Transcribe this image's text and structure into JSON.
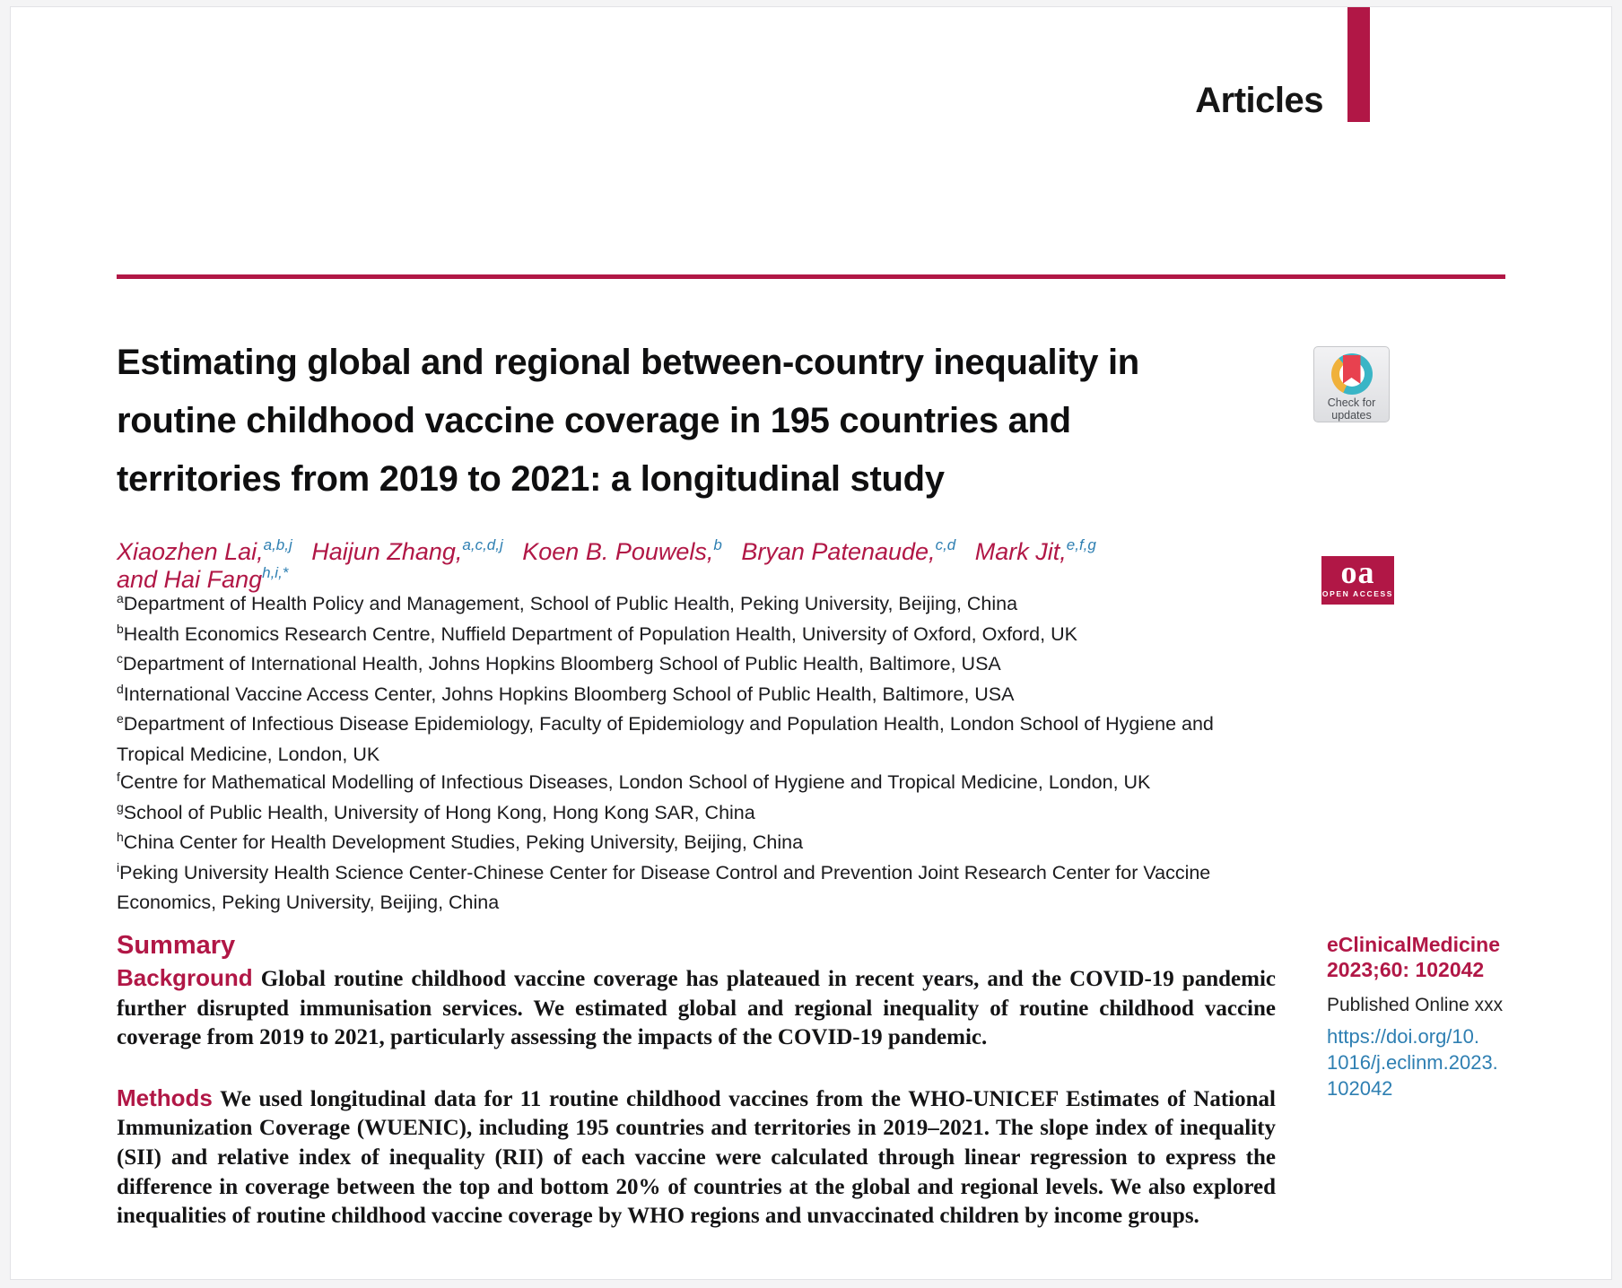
{
  "header": {
    "label": "Articles"
  },
  "title": "Estimating global and regional between-country inequality in\nroutine childhood vaccine coverage in 195 countries and\nterritories from 2019 to 2021: a longitudinal study",
  "authors": [
    {
      "name": "Xiaozhen Lai,",
      "sup": "a,b,j"
    },
    {
      "name": "Haijun Zhang,",
      "sup": "a,c,d,j"
    },
    {
      "name": "Koen B. Pouwels,",
      "sup": "b"
    },
    {
      "name": "Bryan Patenaude,",
      "sup": "c,d"
    },
    {
      "name": "Mark Jit,",
      "sup": "e,f,g"
    },
    {
      "name": "and Hai Fang",
      "sup": "h,i,*"
    }
  ],
  "affiliations": [
    {
      "sup": "a",
      "text": "Department of Health Policy and Management, School of Public Health, Peking University, Beijing, China"
    },
    {
      "sup": "b",
      "text": "Health Economics Research Centre, Nuffield Department of Population Health, University of Oxford, Oxford, UK"
    },
    {
      "sup": "c",
      "text": "Department of International Health, Johns Hopkins Bloomberg School of Public Health, Baltimore, USA"
    },
    {
      "sup": "d",
      "text": "International Vaccine Access Center, Johns Hopkins Bloomberg School of Public Health, Baltimore, USA"
    },
    {
      "sup": "e",
      "text": "Department of Infectious Disease Epidemiology, Faculty of Epidemiology and Population Health, London School of Hygiene and Tropical Medicine, London, UK"
    },
    {
      "sup": "f",
      "text": "Centre for Mathematical Modelling of Infectious Diseases, London School of Hygiene and Tropical Medicine, London, UK"
    },
    {
      "sup": "g",
      "text": "School of Public Health, University of Hong Kong, Hong Kong SAR, China"
    },
    {
      "sup": "h",
      "text": "China Center for Health Development Studies, Peking University, Beijing, China"
    },
    {
      "sup": "i",
      "text": "Peking University Health Science Center-Chinese Center for Disease Control and Prevention Joint Research Center for Vaccine Economics, Peking University, Beijing, China"
    }
  ],
  "summary": {
    "heading": "Summary",
    "paragraphs": [
      {
        "label": "Background",
        "text": "Global routine childhood vaccine coverage has plateaued in recent years, and the COVID-19 pandemic further disrupted immunisation services. We estimated global and regional inequality of routine childhood vaccine coverage from 2019 to 2021, particularly assessing the impacts of the COVID-19 pandemic."
      },
      {
        "label": "Methods",
        "text": "We used longitudinal data for 11 routine childhood vaccines from the WHO-UNICEF Estimates of National Immunization Coverage (WUENIC), including 195 countries and territories in 2019–2021. The slope index of inequality (SII) and relative index of inequality (RII) of each vaccine were calculated through linear regression to express the difference in coverage between the top and bottom 20% of countries at the global and regional levels. We also explored inequalities of routine childhood vaccine coverage by WHO regions and unvaccinated children by income groups."
      }
    ]
  },
  "sidebar": {
    "check_updates": {
      "line1": "Check for",
      "line2": "updates"
    },
    "open_access": {
      "abbr": "oa",
      "label": "OPEN ACCESS"
    },
    "journal": "eClinicalMedicine",
    "citation": "2023;60: 102042",
    "published": "Published Online xxx",
    "doi": "https://doi.org/10.\n1016/j.eclinm.2023.\n102042"
  },
  "colors": {
    "crimson": "#b11746",
    "sup-blue": "#2e7fb2",
    "link-blue": "#2e7fb2",
    "badge-teal": "#3ab5c6",
    "badge-yellow": "#f0b13b",
    "badge-red": "#e8414f"
  }
}
